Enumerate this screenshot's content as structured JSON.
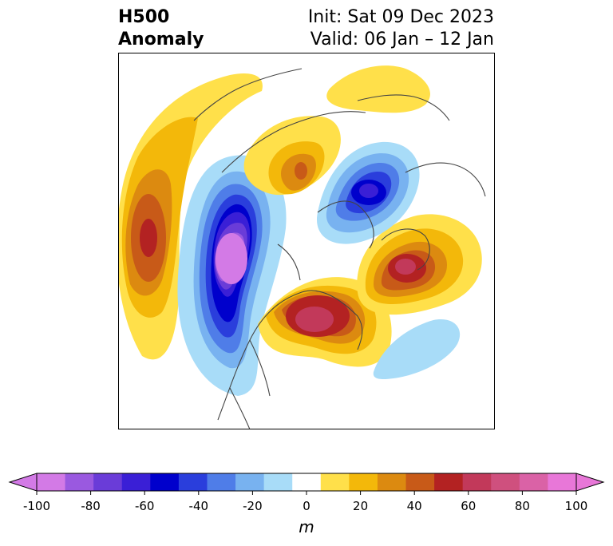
{
  "header": {
    "variable": "H500",
    "subtitle": "Anomaly",
    "init": "Init: Sat 09 Dec 2023",
    "valid": "Valid: 06 Jan – 12 Jan"
  },
  "colorbar": {
    "unit": "m",
    "ticks": [
      "-100",
      "-80",
      "-60",
      "-40",
      "-20",
      "0",
      "20",
      "40",
      "60",
      "80",
      "100"
    ],
    "levels": [
      -100,
      -90,
      -80,
      -70,
      -60,
      -50,
      -40,
      -30,
      -20,
      -10,
      10,
      20,
      30,
      40,
      50,
      60,
      70,
      80,
      90,
      100
    ],
    "colors": [
      "#d37ae6",
      "#9a59e0",
      "#6a3cd8",
      "#3a1fd6",
      "#0000cc",
      "#2a3edc",
      "#4f7de8",
      "#78b2f0",
      "#a8dcf8",
      "#ffffff",
      "#ffe04a",
      "#f3b80a",
      "#dc8a10",
      "#c85a18",
      "#b32222",
      "#c2395a",
      "#cf507e",
      "#da62a6",
      "#e877d8"
    ],
    "extend": "both"
  },
  "map": {
    "projection": "north polar stereographic",
    "field": "500 hPa geopotential height anomaly",
    "features": [
      {
        "name": "pacific-ridge",
        "sign": "positive",
        "peak_m": 60
      },
      {
        "name": "gulf-of-alaska-trough",
        "sign": "negative",
        "peak_m": -100
      },
      {
        "name": "central-canada-ridge",
        "sign": "positive",
        "peak_m": 70
      },
      {
        "name": "greenland-ridge",
        "sign": "positive",
        "peak_m": 70
      },
      {
        "name": "polar-trough",
        "sign": "negative",
        "peak_m": -80
      },
      {
        "name": "siberia-ridge",
        "sign": "positive",
        "peak_m": 50
      },
      {
        "name": "atlantic-trough",
        "sign": "negative",
        "peak_m": -20
      }
    ]
  }
}
